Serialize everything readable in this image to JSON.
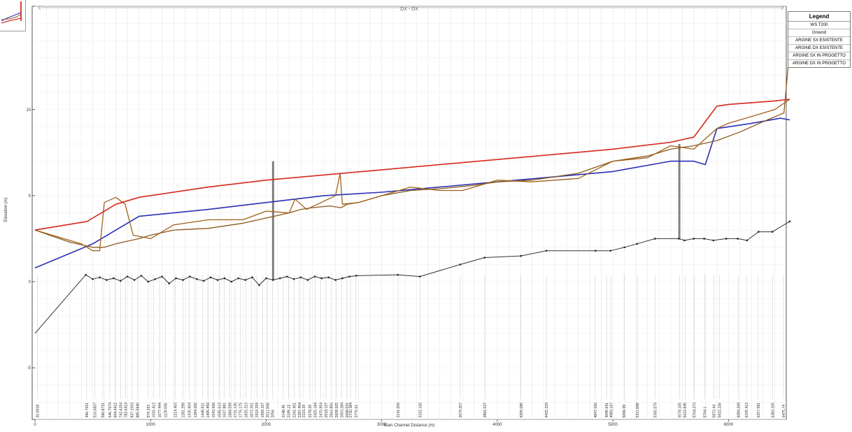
{
  "chart_data": {
    "type": "line",
    "title": "",
    "section_marker": "DX - DX",
    "xlabel": "Main Channel Distance (m)",
    "ylabel": "Elevation (m)",
    "xlim": [
      0,
      6500
    ],
    "ylim": [
      -8,
      16
    ],
    "x_ticks": [
      0,
      1000,
      2000,
      3000,
      4000,
      5000,
      6000
    ],
    "y_ticks": [
      -5,
      0,
      5,
      10
    ],
    "grid": true,
    "legend_position": "top-right",
    "legend_title": "Legend",
    "colors": {
      "ws": "#2b2fb3",
      "ground": "#333333",
      "sx_existing": "#8b5a1e",
      "dx_existing": "#a0611a",
      "sx_project": "#e02020",
      "dx_project": "#d23020",
      "structure": "#808080"
    },
    "series": [
      {
        "name": "WS  T200",
        "key": "ws",
        "x": [
          0,
          500,
          900,
          1500,
          2000,
          2500,
          3000,
          3500,
          4000,
          4500,
          5000,
          5500,
          5700,
          5800,
          5900,
          6000,
          6200,
          6450,
          6530
        ],
        "y": [
          0.8,
          2.2,
          3.8,
          4.2,
          4.6,
          5.0,
          5.2,
          5.5,
          5.8,
          6.1,
          6.4,
          7.0,
          7.0,
          6.8,
          8.9,
          9.0,
          9.2,
          9.5,
          9.4
        ]
      },
      {
        "name": "Ground",
        "key": "ground",
        "x": [
          0,
          440,
          500,
          560,
          620,
          680,
          740,
          800,
          860,
          920,
          980,
          1040,
          1100,
          1160,
          1220,
          1280,
          1340,
          1400,
          1460,
          1520,
          1580,
          1640,
          1700,
          1760,
          1820,
          1880,
          1940,
          2000,
          2060,
          2120,
          2180,
          2240,
          2300,
          2360,
          2420,
          2480,
          2540,
          2600,
          2660,
          2720,
          2780,
          3140,
          3330,
          3680,
          3890,
          4205,
          4425,
          4850,
          4980,
          5100,
          5210,
          5365,
          5570,
          5620,
          5700,
          5790,
          5870,
          5980,
          6080,
          6160,
          6260,
          6380,
          6530
        ],
        "y": [
          -3.0,
          0.4,
          0.15,
          0.25,
          0.1,
          0.2,
          0.05,
          0.3,
          0.1,
          0.35,
          0.0,
          0.15,
          0.3,
          -0.1,
          0.2,
          0.1,
          0.3,
          0.15,
          0.05,
          0.25,
          0.1,
          0.2,
          0.0,
          0.2,
          0.1,
          0.25,
          -0.2,
          0.2,
          0.1,
          0.2,
          0.3,
          0.15,
          0.25,
          0.1,
          0.3,
          0.2,
          0.25,
          0.1,
          0.2,
          0.3,
          0.35,
          0.4,
          0.3,
          1.0,
          1.4,
          1.5,
          1.8,
          1.8,
          1.8,
          2.0,
          2.2,
          2.5,
          2.5,
          2.4,
          2.5,
          2.5,
          2.4,
          2.5,
          2.5,
          2.4,
          2.9,
          2.9,
          3.5
        ]
      },
      {
        "name": "ARGINE SX ESISTENTE",
        "key": "sx_existing",
        "x": [
          0,
          300,
          500,
          600,
          700,
          900,
          1000,
          1200,
          1500,
          1800,
          2000,
          2200,
          2300,
          2400,
          2550,
          2650,
          2700,
          2800,
          3000,
          3250,
          3500,
          3800,
          4000,
          4300,
          4700,
          5000,
          5300,
          5500,
          5600,
          5700,
          5900,
          6100,
          6300,
          6480,
          6530
        ],
        "y": [
          3.0,
          2.3,
          2.0,
          2.0,
          2.2,
          2.5,
          2.7,
          3.0,
          3.1,
          3.4,
          3.7,
          4.0,
          4.2,
          4.3,
          4.4,
          4.3,
          4.5,
          4.6,
          5.0,
          5.3,
          5.4,
          5.6,
          5.8,
          5.9,
          6.3,
          7.0,
          7.3,
          7.7,
          7.8,
          7.9,
          8.2,
          8.7,
          9.3,
          9.8,
          13.5
        ]
      },
      {
        "name": "ARGINE DX ESISTENTE",
        "key": "dx_existing",
        "x": [
          0,
          400,
          500,
          560,
          600,
          700,
          780,
          850,
          1000,
          1200,
          1500,
          1800,
          2000,
          2200,
          2250,
          2350,
          2600,
          2640,
          2660,
          2800,
          3000,
          3250,
          3500,
          3700,
          4000,
          4300,
          4700,
          5000,
          5300,
          5500,
          5600,
          5700,
          5900,
          6000,
          6200,
          6400,
          6530
        ],
        "y": [
          3.0,
          2.2,
          1.8,
          1.8,
          4.6,
          4.9,
          4.5,
          2.7,
          2.5,
          3.3,
          3.6,
          3.6,
          4.1,
          4.0,
          4.8,
          4.2,
          5.0,
          6.3,
          4.5,
          4.6,
          5.0,
          5.5,
          5.3,
          5.3,
          5.9,
          5.8,
          6.0,
          7.0,
          7.2,
          7.9,
          7.8,
          7.7,
          8.9,
          9.2,
          9.6,
          10.0,
          10.6
        ]
      },
      {
        "name": "ARGINE SX IN PROGETTO",
        "key": "sx_project",
        "x": [
          0,
          450,
          700,
          900,
          1500,
          2000,
          2500,
          3000,
          3500,
          4000,
          4500,
          5000,
          5500,
          5700,
          5900,
          6000,
          6200,
          6400,
          6530
        ],
        "y": [
          3.0,
          3.5,
          4.5,
          4.9,
          5.5,
          5.9,
          6.2,
          6.5,
          6.8,
          7.1,
          7.4,
          7.7,
          8.1,
          8.4,
          10.2,
          10.3,
          10.4,
          10.5,
          10.6
        ]
      },
      {
        "name": "ARGINE DX IN PROGETTO",
        "key": "dx_project",
        "x": [
          0,
          450,
          700,
          900,
          1500,
          2000,
          2500,
          3000,
          3500,
          4000,
          4500,
          5000,
          5500,
          5700,
          5900,
          6000,
          6200,
          6400,
          6530
        ],
        "y": [
          3.0,
          3.5,
          4.5,
          4.9,
          5.5,
          5.9,
          6.2,
          6.5,
          6.8,
          7.1,
          7.4,
          7.7,
          8.1,
          8.4,
          10.2,
          10.3,
          10.4,
          10.5,
          10.6
        ]
      }
    ],
    "structures": [
      {
        "x": 2060,
        "y_low": 0.1,
        "y_high": 7.0
      },
      {
        "x": 5575,
        "y_low": 2.5,
        "y_high": 8.0
      }
    ],
    "station_labels": [
      "20.6918",
      "446.7651",
      "516.6837",
      "586.8721",
      "646.7674",
      "694.4412",
      "742.6254",
      "782.6414",
      "837.1563",
      "885.5840",
      "979.393",
      "1026.412",
      "1077.444",
      "1129.006",
      "1214.463",
      "1281.299",
      "1335.604",
      "1384.600",
      "1448.911",
      "1495.459",
      "1543.968",
      "1595.513",
      "1637.881",
      "1684.599",
      "1731.136",
      "1776.175",
      "1825.213",
      "1872.201",
      "1919.209",
      "1968.327",
      "2011.968",
      "2056",
      "2148.45",
      "2195.12",
      "2241.401",
      "2287.464",
      "2323.39",
      "2378.29",
      "2425.184",
      "2470.954",
      "2518.127",
      "2563.856",
      "2608.605",
      "2653.284",
      "2698.531",
      "2730.384",
      "2776.61",
      "3141.059",
      "3332.165",
      "3679.207",
      "3891.527",
      "4205.085",
      "4425.229",
      "4847.066",
      "4983.167",
      "4945.641",
      "5096.99",
      "5211.888",
      "5365.579",
      "5578.105",
      "5623.845",
      "5704.273",
      "5794.1",
      "5872.44",
      "5922.236",
      "6084.269",
      "6155.412",
      "6257.581",
      "6383.155",
      "6475.74"
    ],
    "station_x": [
      20.7,
      446.8,
      516.7,
      586.9,
      646.8,
      694.4,
      742.6,
      782.6,
      837.2,
      885.6,
      979.4,
      1026.4,
      1077.4,
      1129.0,
      1214.5,
      1281.3,
      1335.6,
      1384.6,
      1448.9,
      1495.5,
      1544.0,
      1595.5,
      1637.9,
      1684.6,
      1731.1,
      1776.2,
      1825.2,
      1872.2,
      1919.2,
      1968.3,
      2012.0,
      2056.0,
      2148.5,
      2195.1,
      2241.4,
      2287.5,
      2323.4,
      2378.3,
      2425.2,
      2471.0,
      2518.1,
      2563.9,
      2608.6,
      2653.3,
      2698.5,
      2730.4,
      2776.6,
      3141.1,
      3332.2,
      3679.2,
      3891.5,
      4205.1,
      4425.2,
      4847.1,
      4983.2,
      4945.6,
      5097.0,
      5211.9,
      5365.6,
      5578.1,
      5623.8,
      5704.3,
      5794.1,
      5872.4,
      5922.2,
      6084.3,
      6155.4,
      6257.6,
      6383.2,
      6475.7
    ]
  }
}
